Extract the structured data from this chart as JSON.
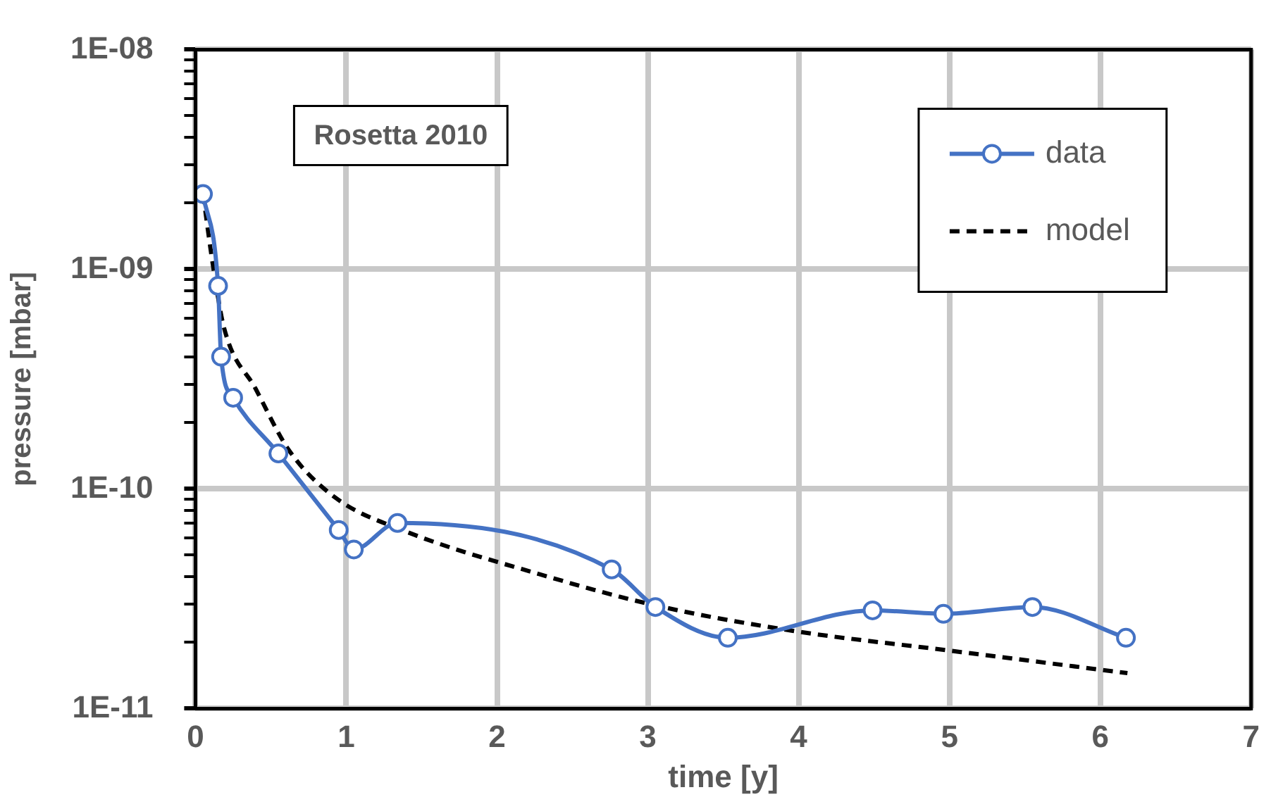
{
  "chart_data": {
    "type": "line",
    "xlabel": "time [y]",
    "ylabel": "pressure [mbar]",
    "annotations": [
      "Rosetta 2010"
    ],
    "xlim": [
      0,
      7
    ],
    "xticks": [
      0,
      1,
      2,
      3,
      4,
      5,
      6,
      7
    ],
    "ylim": [
      1e-11,
      1e-08
    ],
    "log": "y",
    "yticks": [
      {
        "value": 1e-11,
        "label": "1E-11"
      },
      {
        "value": 2e-11,
        "label": null
      },
      {
        "value": 3e-11,
        "label": null
      },
      {
        "value": 4e-11,
        "label": null
      },
      {
        "value": 5e-11,
        "label": null
      },
      {
        "value": 6e-11,
        "label": null
      },
      {
        "value": 7e-11,
        "label": null
      },
      {
        "value": 8e-11,
        "label": null
      },
      {
        "value": 9e-11,
        "label": null
      },
      {
        "value": 1e-10,
        "label": "1E-10"
      },
      {
        "value": 2e-10,
        "label": null
      },
      {
        "value": 3e-10,
        "label": null
      },
      {
        "value": 4e-10,
        "label": null
      },
      {
        "value": 5e-10,
        "label": null
      },
      {
        "value": 6e-10,
        "label": null
      },
      {
        "value": 7e-10,
        "label": null
      },
      {
        "value": 8e-10,
        "label": null
      },
      {
        "value": 9e-10,
        "label": null
      },
      {
        "value": 1e-09,
        "label": "1E-09"
      },
      {
        "value": 2e-09,
        "label": null
      },
      {
        "value": 3e-09,
        "label": null
      },
      {
        "value": 4e-09,
        "label": null
      },
      {
        "value": 5e-09,
        "label": null
      },
      {
        "value": 6e-09,
        "label": null
      },
      {
        "value": 7e-09,
        "label": null
      },
      {
        "value": 8e-09,
        "label": null
      },
      {
        "value": 9e-09,
        "label": null
      },
      {
        "value": 1e-08,
        "label": "1E-08"
      }
    ],
    "grid": true,
    "legend": "top right",
    "series": [
      {
        "name": "data",
        "color": "#4472c4",
        "marker": "circle",
        "line_style": "solid",
        "x": [
          0.05,
          0.15,
          0.17,
          0.25,
          0.55,
          0.95,
          1.05,
          1.34,
          2.76,
          3.05,
          3.53,
          4.49,
          4.96,
          5.55,
          6.17
        ],
        "values": [
          2.2e-09,
          8.4e-10,
          4e-10,
          2.6e-10,
          1.45e-10,
          6.5e-11,
          5.3e-11,
          7e-11,
          4.3e-11,
          2.9e-11,
          2.1e-11,
          2.8e-11,
          2.7e-11,
          2.9e-11,
          2.1e-11
        ]
      },
      {
        "name": "model",
        "color": "#000000",
        "marker": "none",
        "line_style": "dashed",
        "x": [
          0.05,
          0.12,
          0.19,
          0.4,
          0.62,
          0.93,
          1.37,
          2.33,
          3.05,
          3.96,
          4.99,
          6.18
        ],
        "values": [
          2.2e-09,
          1e-09,
          5.4e-10,
          2.85e-10,
          1.5e-10,
          9.1e-11,
          6.5e-11,
          4e-11,
          2.95e-11,
          2.26e-11,
          1.84e-11,
          1.45e-11
        ]
      }
    ]
  }
}
